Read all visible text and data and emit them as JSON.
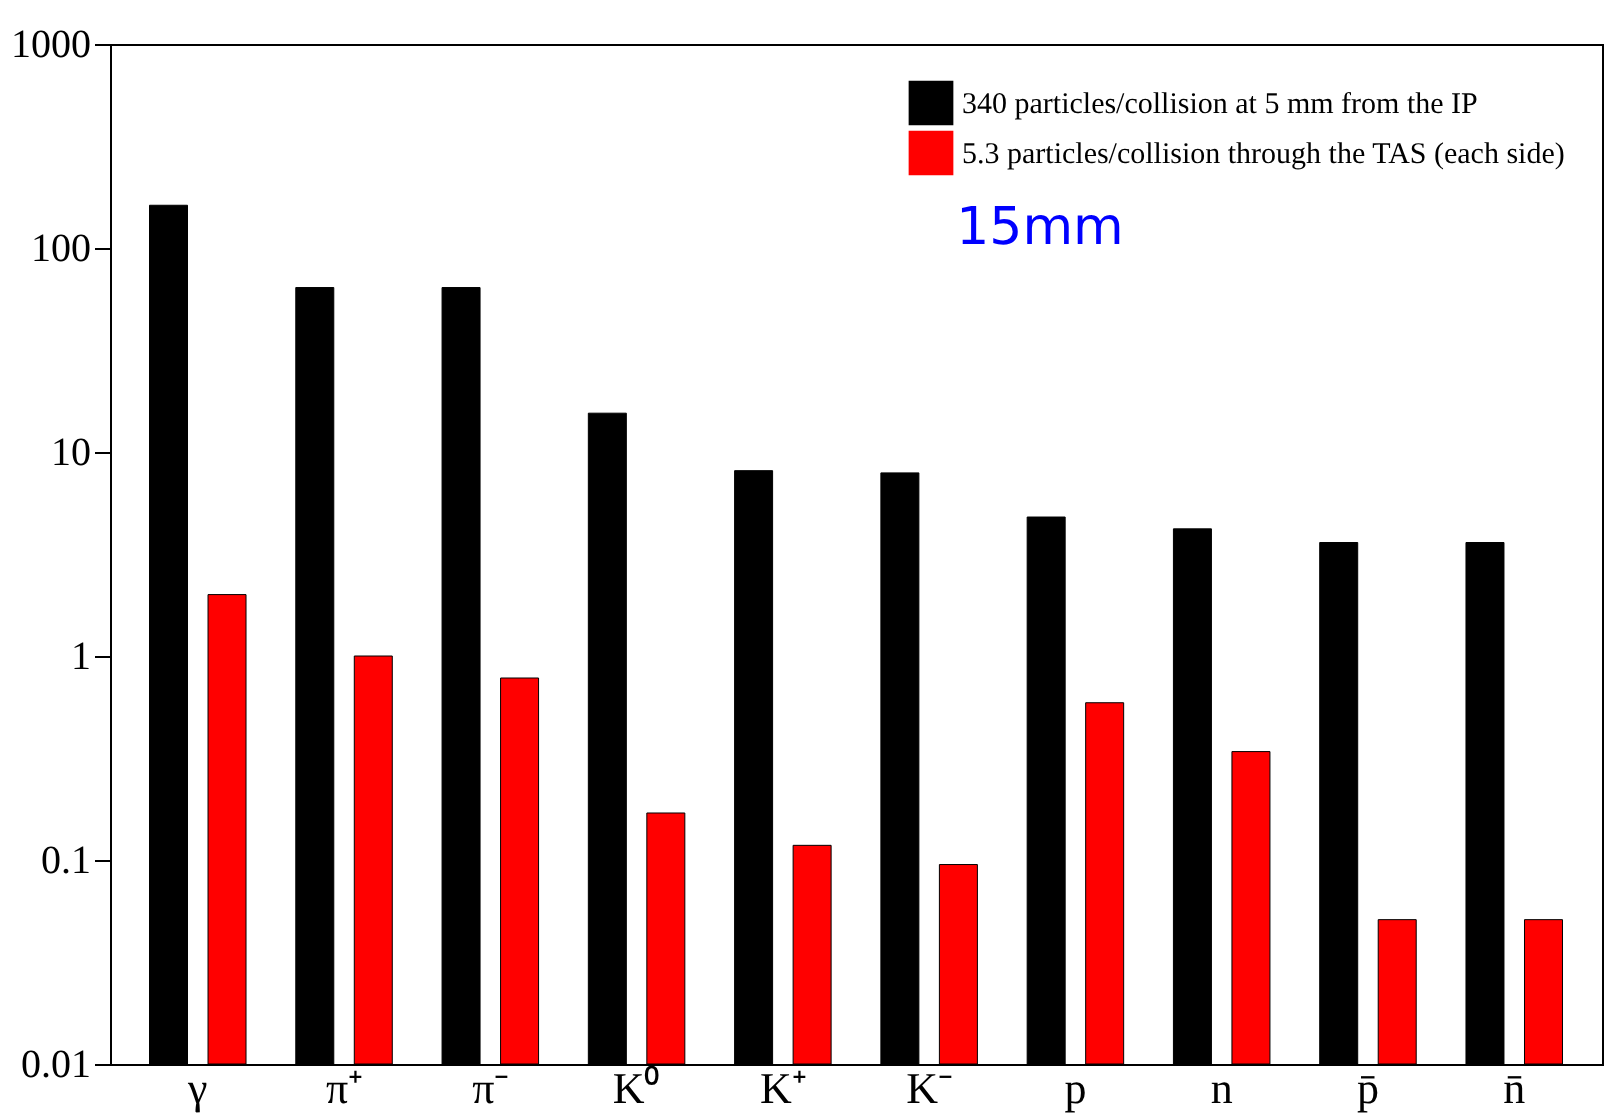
{
  "chart_data": {
    "type": "bar",
    "categories": [
      "γ",
      "π⁺",
      "π⁻",
      "K⁰",
      "K⁺",
      "K⁻",
      "p",
      "n",
      "p̄",
      "n̄"
    ],
    "series": [
      {
        "name": "340 particles/collision at 5 mm from the IP",
        "color": "#000000",
        "values": [
          162,
          64,
          64,
          15.5,
          8.1,
          7.9,
          4.8,
          4.2,
          3.6,
          3.6
        ]
      },
      {
        "name": "5.3 particles/collision through the TAS (each side)",
        "color": "#ff0000",
        "values": [
          2.0,
          1.0,
          0.78,
          0.17,
          0.118,
          0.095,
          0.59,
          0.34,
          0.051,
          0.051
        ]
      }
    ],
    "log": true,
    "ylim": [
      0.01,
      1000
    ],
    "yticks": [
      0.01,
      0.1,
      1,
      10,
      100,
      1000
    ],
    "grid": false,
    "legend": "top right",
    "annotations": [
      "15mm"
    ]
  }
}
